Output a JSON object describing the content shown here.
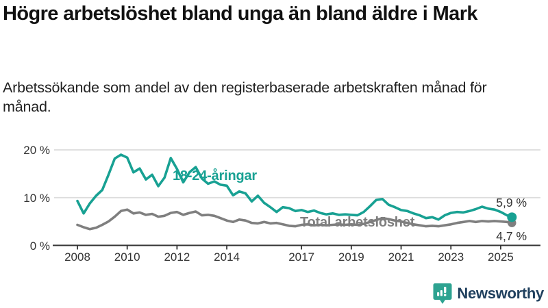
{
  "title": "Högre arbetslöshet bland unga än bland äldre i Mark",
  "subtitle": "Arbetssökande som andel av den registerbaserade arbetskraften månad för månad.",
  "colors": {
    "young_series": "#18a193",
    "total_series": "#7f7f7f",
    "gridline": "#dcdcdc",
    "axis": "#333333",
    "tick_text": "#333333",
    "title_text": "#111111",
    "logo_text": "#20405e",
    "logo_icon": "#2ea391"
  },
  "chart_data": {
    "type": "line",
    "unit": "%",
    "ylim": [
      0,
      20
    ],
    "grid": "horizontal",
    "legend": "inline-labels",
    "y_ticks": [
      {
        "value": 0,
        "label": "0 %"
      },
      {
        "value": 10,
        "label": "10 %"
      },
      {
        "value": 20,
        "label": "20 %"
      }
    ],
    "x_ticks": [
      {
        "value": 2008,
        "label": "2008"
      },
      {
        "value": 2010,
        "label": "2010"
      },
      {
        "value": 2012,
        "label": "2012"
      },
      {
        "value": 2014,
        "label": "2014"
      },
      {
        "value": 2017,
        "label": "2017"
      },
      {
        "value": 2019,
        "label": "2019"
      },
      {
        "value": 2021,
        "label": "2021"
      },
      {
        "value": 2023,
        "label": "2023"
      },
      {
        "value": 2025,
        "label": "2025"
      }
    ],
    "x": [
      2008,
      2008.25,
      2008.5,
      2008.75,
      2009,
      2009.25,
      2009.5,
      2009.75,
      2010,
      2010.25,
      2010.5,
      2010.75,
      2011,
      2011.25,
      2011.5,
      2011.75,
      2012,
      2012.25,
      2012.5,
      2012.75,
      2013,
      2013.25,
      2013.5,
      2013.75,
      2014,
      2014.25,
      2014.5,
      2014.75,
      2015,
      2015.25,
      2015.5,
      2015.75,
      2016,
      2016.25,
      2016.5,
      2016.75,
      2017,
      2017.25,
      2017.5,
      2017.75,
      2018,
      2018.25,
      2018.5,
      2018.75,
      2019,
      2019.25,
      2019.5,
      2019.75,
      2020,
      2020.25,
      2020.5,
      2020.75,
      2021,
      2021.25,
      2021.5,
      2021.75,
      2022,
      2022.25,
      2022.5,
      2022.75,
      2023,
      2023.25,
      2023.5,
      2023.75,
      2024,
      2024.25,
      2024.5,
      2024.75,
      2025,
      2025.25,
      2025.45
    ],
    "series": [
      {
        "name": "Total arbetslöshet",
        "color": "#7f7f7f",
        "end_label": "4,7 %",
        "values": [
          4.3,
          3.8,
          3.4,
          3.7,
          4.3,
          5,
          6,
          7.2,
          7.5,
          6.7,
          6.9,
          6.4,
          6.6,
          6,
          6.2,
          6.8,
          7,
          6.4,
          6.8,
          7.1,
          6.3,
          6.4,
          6.2,
          5.7,
          5.2,
          4.9,
          5.4,
          5.2,
          4.7,
          4.6,
          4.9,
          4.6,
          4.7,
          4.4,
          4.1,
          4,
          4.3,
          4.4,
          4.2,
          4.3,
          4.2,
          4.3,
          4.4,
          4.3,
          4.4,
          4.3,
          4.5,
          4.9,
          5.3,
          5.7,
          5.5,
          5.2,
          5,
          4.7,
          4.4,
          4.2,
          4,
          4.1,
          4,
          4.2,
          4.4,
          4.7,
          4.9,
          5.1,
          4.9,
          5.1,
          5,
          5.1,
          5,
          4.9,
          4.7
        ]
      },
      {
        "name": "18-24-åringar",
        "color": "#18a193",
        "end_label": "5,9 %",
        "values": [
          9.3,
          6.7,
          8.8,
          10.4,
          11.6,
          14.8,
          18.2,
          19,
          18.4,
          15.3,
          16.1,
          13.8,
          14.8,
          12.4,
          14.2,
          18.3,
          16,
          13.2,
          15.3,
          16.4,
          14,
          12.9,
          13.4,
          12.7,
          12.5,
          10.5,
          11.3,
          10.9,
          9.2,
          10.4,
          8.9,
          8,
          7,
          8,
          7.8,
          7.2,
          7.4,
          7,
          7.3,
          6.8,
          6.5,
          6.7,
          6.4,
          6.5,
          6.4,
          6.3,
          7,
          8.2,
          9.5,
          9.7,
          8.5,
          8,
          7.4,
          7.2,
          6.7,
          6.3,
          5.7,
          5.9,
          5.4,
          6.3,
          6.8,
          7,
          6.9,
          7.2,
          7.6,
          8.1,
          7.7,
          7.5,
          7,
          6.3,
          5.9
        ]
      }
    ]
  },
  "logo": {
    "text": "Newsworthy"
  }
}
